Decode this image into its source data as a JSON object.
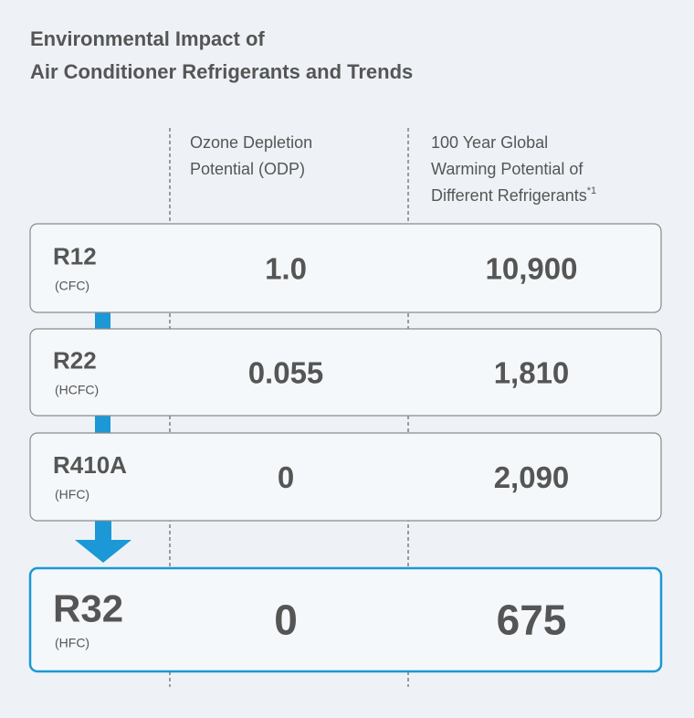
{
  "header": {
    "title": [
      "Environmental Impact of",
      "Air Conditioner Refrigerants and Trends"
    ]
  },
  "table": {
    "columns": [
      {
        "lines": [
          "Ozone Depletion",
          "Potential (ODP)"
        ]
      },
      {
        "lines": [
          "100 Year Global",
          "Warming Potential of",
          "Different Refrigerants"
        ],
        "note": "*1"
      }
    ],
    "rows": [
      {
        "name": "R12",
        "type": "(CFC)",
        "odp": "1.0",
        "gwp": "10,900"
      },
      {
        "name": "R22",
        "type": "(HCFC)",
        "odp": "0.055",
        "gwp": "1,810"
      },
      {
        "name": "R410A",
        "type": "(HFC)",
        "odp": "0",
        "gwp": "2,090"
      },
      {
        "name": "R32",
        "type": "(HFC)",
        "odp": "0",
        "gwp": "675"
      }
    ]
  }
}
